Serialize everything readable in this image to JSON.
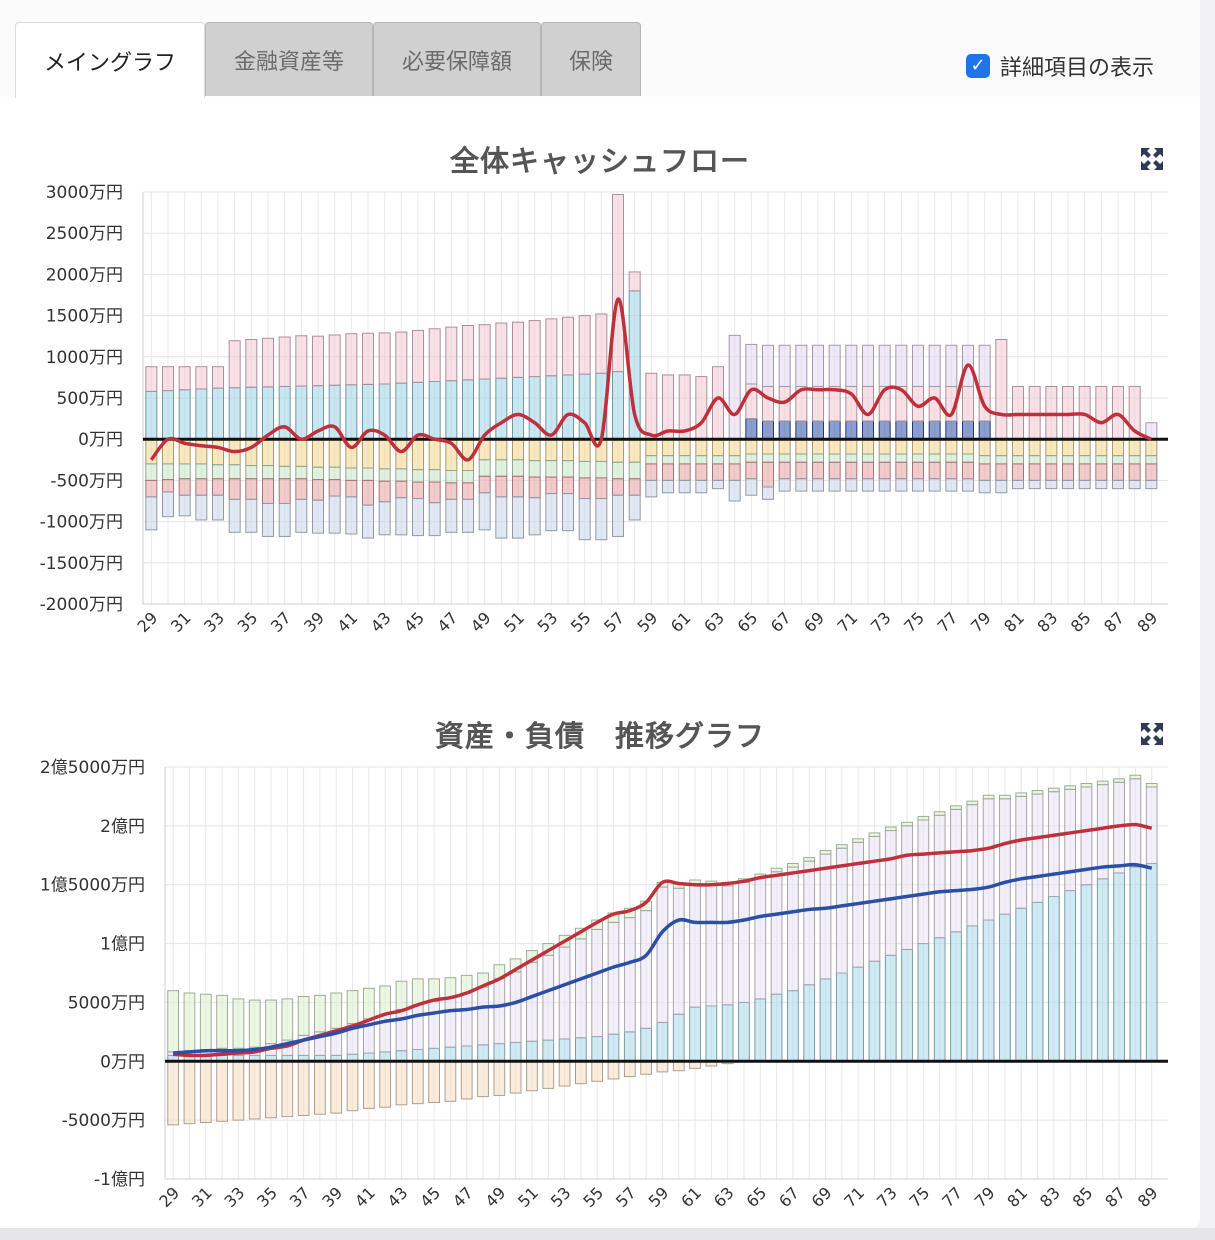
{
  "tabs": [
    {
      "label": "メイングラフ",
      "active": true
    },
    {
      "label": "金融資産等",
      "active": false
    },
    {
      "label": "必要保障額",
      "active": false
    },
    {
      "label": "保険",
      "active": false
    }
  ],
  "detail_toggle": {
    "label": "詳細項目の表示",
    "checked": true
  },
  "icons": {
    "expand": "expand-arrows-icon",
    "checkbox": "check-icon"
  },
  "colors": {
    "accent": "#1f74e8",
    "line_red": "#c0303c",
    "line_blue": "#2b4ea6"
  },
  "chart_data": [
    {
      "type": "bar",
      "title": "全体キャッシュフロー",
      "ylim": [
        -2000,
        3000
      ],
      "yticks": [
        "3000万円",
        "2500万円",
        "2000万円",
        "1500万円",
        "1000万円",
        "500万円",
        "0万円",
        "-500万円",
        "-1000万円",
        "-1500万円",
        "-2000万円"
      ],
      "xticks": [
        "29",
        "31",
        "33",
        "35",
        "37",
        "39",
        "41",
        "43",
        "45",
        "47",
        "49",
        "51",
        "53",
        "55",
        "57",
        "59",
        "61",
        "63",
        "65",
        "67",
        "69",
        "71",
        "73",
        "75",
        "77",
        "79",
        "81",
        "83",
        "85",
        "87",
        "89"
      ],
      "x_start": 29,
      "series": [
        {
          "role": "income-salary",
          "color": "#9bd3e6",
          "values": [
            580,
            590,
            600,
            610,
            620,
            625,
            630,
            635,
            640,
            645,
            650,
            655,
            660,
            665,
            670,
            680,
            690,
            700,
            710,
            720,
            730,
            740,
            750,
            760,
            770,
            780,
            790,
            800,
            820,
            1800,
            0,
            0,
            0,
            0,
            0,
            0,
            0,
            0,
            0,
            0,
            0,
            0,
            0,
            0,
            0,
            0,
            0,
            0,
            0,
            0,
            0,
            0,
            0,
            0,
            0,
            0,
            0,
            0,
            0,
            0,
            0
          ]
        },
        {
          "role": "income-pension",
          "color": "#2b4ea6",
          "values": [
            0,
            0,
            0,
            0,
            0,
            0,
            0,
            0,
            0,
            0,
            0,
            0,
            0,
            0,
            0,
            0,
            0,
            0,
            0,
            0,
            0,
            0,
            0,
            0,
            0,
            0,
            0,
            0,
            0,
            0,
            0,
            0,
            0,
            0,
            0,
            0,
            250,
            220,
            220,
            220,
            220,
            220,
            220,
            220,
            220,
            220,
            220,
            220,
            220,
            220,
            220,
            0,
            0,
            0,
            0,
            0,
            0,
            0,
            0,
            0,
            0
          ]
        },
        {
          "role": "income-other",
          "color": "#f3c6d4",
          "values": [
            300,
            290,
            280,
            270,
            260,
            570,
            580,
            590,
            600,
            610,
            600,
            610,
            620,
            620,
            620,
            620,
            630,
            640,
            650,
            660,
            660,
            670,
            670,
            680,
            690,
            700,
            710,
            720,
            2150,
            230,
            800,
            780,
            780,
            760,
            880,
            0,
            420,
            420,
            420,
            420,
            420,
            420,
            420,
            420,
            420,
            420,
            420,
            420,
            420,
            420,
            420,
            1210,
            640,
            640,
            640,
            640,
            640,
            640,
            640,
            640,
            0
          ]
        },
        {
          "role": "income-pension-2",
          "color": "#e1d5f0",
          "values": [
            0,
            0,
            0,
            0,
            0,
            0,
            0,
            0,
            0,
            0,
            0,
            0,
            0,
            0,
            0,
            0,
            0,
            0,
            0,
            0,
            0,
            0,
            0,
            0,
            0,
            0,
            0,
            0,
            0,
            0,
            0,
            0,
            0,
            0,
            0,
            1260,
            480,
            500,
            500,
            500,
            500,
            500,
            500,
            500,
            500,
            500,
            500,
            500,
            500,
            500,
            500,
            0,
            0,
            0,
            0,
            0,
            0,
            0,
            0,
            0,
            200
          ]
        },
        {
          "role": "expense-living",
          "color": "#f3d68c",
          "values": [
            -300,
            -300,
            -300,
            -300,
            -310,
            -310,
            -320,
            -320,
            -330,
            -330,
            -340,
            -340,
            -350,
            -350,
            -360,
            -360,
            -370,
            -370,
            -380,
            -380,
            -250,
            -250,
            -250,
            -260,
            -260,
            -260,
            -270,
            -270,
            -280,
            -280,
            -200,
            -200,
            -200,
            -200,
            -200,
            -200,
            -180,
            -180,
            -180,
            -180,
            -180,
            -180,
            -180,
            -180,
            -180,
            -180,
            -180,
            -180,
            -180,
            -180,
            -200,
            -200,
            -200,
            -200,
            -200,
            -200,
            -200,
            -200,
            -200,
            -200,
            -200
          ]
        },
        {
          "role": "expense-insurance",
          "color": "#c9e6c9",
          "values": [
            -200,
            -190,
            -180,
            -180,
            -170,
            -170,
            -160,
            -160,
            -150,
            -150,
            -150,
            -150,
            -150,
            -150,
            -150,
            -150,
            -150,
            -150,
            -150,
            -150,
            -200,
            -200,
            -200,
            -200,
            -200,
            -200,
            -200,
            -200,
            -200,
            -200,
            -100,
            -100,
            -100,
            -100,
            -100,
            -100,
            -100,
            -100,
            -100,
            -100,
            -100,
            -100,
            -100,
            -100,
            -100,
            -100,
            -100,
            -100,
            -100,
            -100,
            -100,
            -100,
            -100,
            -100,
            -100,
            -100,
            -100,
            -100,
            -100,
            -100,
            -100
          ]
        },
        {
          "role": "expense-tax",
          "color": "#e8a3a3",
          "values": [
            -200,
            -150,
            -200,
            -200,
            -200,
            -250,
            -250,
            -300,
            -300,
            -250,
            -250,
            -200,
            -200,
            -300,
            -250,
            -200,
            -200,
            -250,
            -200,
            -200,
            -200,
            -250,
            -250,
            -250,
            -200,
            -200,
            -250,
            -250,
            -200,
            -200,
            -200,
            -200,
            -200,
            -200,
            -200,
            -200,
            -200,
            -300,
            -200,
            -200,
            -200,
            -200,
            -200,
            -200,
            -200,
            -200,
            -200,
            -200,
            -200,
            -200,
            -200,
            -200,
            -200,
            -200,
            -200,
            -200,
            -200,
            -200,
            -200,
            -200,
            -200
          ]
        },
        {
          "role": "expense-other",
          "color": "#c8d6ea",
          "values": [
            -400,
            -300,
            -250,
            -300,
            -300,
            -400,
            -400,
            -400,
            -400,
            -400,
            -400,
            -450,
            -450,
            -400,
            -400,
            -450,
            -450,
            -400,
            -400,
            -400,
            -450,
            -500,
            -500,
            -450,
            -450,
            -450,
            -500,
            -500,
            -500,
            -300,
            -200,
            -150,
            -150,
            -150,
            -100,
            -250,
            -200,
            -150,
            -150,
            -150,
            -150,
            -150,
            -150,
            -150,
            -150,
            -150,
            -150,
            -150,
            -150,
            -150,
            -150,
            -150,
            -100,
            -100,
            -100,
            -100,
            -100,
            -100,
            -100,
            -100,
            -100
          ]
        }
      ],
      "line": {
        "role": "cashflow-balance",
        "color": "#c0303c",
        "values": [
          -250,
          0,
          -50,
          -80,
          -100,
          -150,
          -100,
          50,
          150,
          0,
          100,
          150,
          -100,
          100,
          50,
          -150,
          50,
          0,
          -50,
          -250,
          50,
          200,
          300,
          200,
          50,
          300,
          200,
          0,
          1700,
          300,
          50,
          100,
          100,
          200,
          500,
          300,
          600,
          500,
          450,
          600,
          600,
          600,
          550,
          300,
          600,
          600,
          400,
          500,
          300,
          900,
          400,
          300,
          300,
          300,
          300,
          300,
          300,
          200,
          300,
          100,
          0
        ]
      }
    },
    {
      "type": "bar",
      "title": "資産・負債　推移グラフ",
      "ylim": [
        -10000,
        25000
      ],
      "yticks": [
        "2億5000万円",
        "2億円",
        "1億5000万円",
        "1億円",
        "5000万円",
        "0万円",
        "-5000万円",
        "-1億円"
      ],
      "xticks": [
        "29",
        "31",
        "33",
        "35",
        "37",
        "39",
        "41",
        "43",
        "45",
        "47",
        "49",
        "51",
        "53",
        "55",
        "57",
        "59",
        "61",
        "63",
        "65",
        "67",
        "69",
        "71",
        "73",
        "75",
        "77",
        "79",
        "81",
        "83",
        "85",
        "87",
        "89"
      ],
      "x_start": 29,
      "series": [
        {
          "role": "asset-cash",
          "color": "#a7d8ea",
          "values": [
            500,
            500,
            500,
            500,
            500,
            500,
            500,
            500,
            500,
            500,
            500,
            600,
            700,
            800,
            900,
            1000,
            1100,
            1200,
            1300,
            1400,
            1500,
            1600,
            1700,
            1800,
            1900,
            2000,
            2100,
            2300,
            2500,
            2800,
            3300,
            4000,
            4600,
            4700,
            4800,
            5000,
            5300,
            5700,
            6000,
            6500,
            7000,
            7500,
            8000,
            8500,
            9000,
            9500,
            10000,
            10500,
            11000,
            11500,
            12000,
            12500,
            13000,
            13500,
            14000,
            14500,
            15000,
            15500,
            16000,
            16500,
            16800
          ]
        },
        {
          "role": "asset-investment",
          "color": "#e9e2f3",
          "values": [
            300,
            400,
            500,
            600,
            600,
            700,
            1000,
            1300,
            1700,
            2000,
            2300,
            2600,
            2900,
            3200,
            3500,
            3800,
            4000,
            4200,
            4500,
            4900,
            5500,
            6000,
            6700,
            7200,
            7800,
            8400,
            9100,
            9500,
            9700,
            10000,
            11500,
            10700,
            10500,
            10300,
            10100,
            10200,
            10300,
            10400,
            10500,
            10500,
            10600,
            10600,
            10600,
            10600,
            10600,
            10500,
            10500,
            10400,
            10400,
            10300,
            10300,
            9800,
            9500,
            9200,
            8900,
            8600,
            8300,
            8000,
            7700,
            7500,
            6500
          ]
        },
        {
          "role": "asset-other",
          "color": "#dcefd0",
          "values": [
            5200,
            4900,
            4700,
            4500,
            4200,
            4000,
            3700,
            3500,
            3300,
            3100,
            3000,
            2800,
            2600,
            2400,
            2400,
            2200,
            1900,
            1700,
            1500,
            1200,
            1200,
            1100,
            1000,
            1000,
            1000,
            900,
            800,
            800,
            800,
            800,
            400,
            400,
            300,
            300,
            300,
            300,
            300,
            300,
            300,
            300,
            300,
            300,
            300,
            300,
            300,
            300,
            300,
            300,
            300,
            300,
            300,
            300,
            300,
            300,
            300,
            300,
            300,
            300,
            300,
            300,
            300
          ]
        },
        {
          "role": "liability-loan",
          "color": "#f6dcbf",
          "values": [
            -5400,
            -5300,
            -5200,
            -5100,
            -5000,
            -4900,
            -4800,
            -4700,
            -4600,
            -4500,
            -4400,
            -4200,
            -4000,
            -3900,
            -3700,
            -3600,
            -3500,
            -3400,
            -3200,
            -3000,
            -2900,
            -2700,
            -2500,
            -2300,
            -2100,
            -1900,
            -1700,
            -1500,
            -1300,
            -1100,
            -900,
            -800,
            -600,
            -400,
            -200,
            0,
            0,
            0,
            0,
            0,
            0,
            0,
            0,
            0,
            0,
            0,
            0,
            0,
            0,
            0,
            0,
            0,
            0,
            0,
            0,
            0,
            0,
            0,
            0,
            0,
            0
          ]
        }
      ],
      "lines": [
        {
          "role": "total-assets",
          "color": "#c0303c",
          "values": [
            600,
            500,
            500,
            600,
            700,
            800,
            1100,
            1300,
            1800,
            2200,
            2600,
            3000,
            3500,
            4000,
            4300,
            4800,
            5200,
            5400,
            5800,
            6400,
            7000,
            7800,
            8600,
            9400,
            10200,
            11000,
            11800,
            12500,
            12800,
            13500,
            15200,
            15100,
            15000,
            15000,
            15100,
            15300,
            15600,
            15800,
            16000,
            16200,
            16400,
            16600,
            16800,
            17000,
            17200,
            17500,
            17600,
            17700,
            17800,
            17900,
            18100,
            18500,
            18800,
            19000,
            19200,
            19400,
            19600,
            19800,
            20000,
            20100,
            19800
          ]
        },
        {
          "role": "net-assets",
          "color": "#2b4ea6",
          "values": [
            700,
            800,
            900,
            900,
            900,
            1000,
            1200,
            1500,
            1800,
            2100,
            2400,
            2800,
            3100,
            3400,
            3600,
            3900,
            4100,
            4300,
            4400,
            4600,
            4700,
            5000,
            5500,
            6000,
            6500,
            7000,
            7500,
            8000,
            8400,
            9000,
            11000,
            12000,
            11800,
            11800,
            11800,
            12000,
            12300,
            12500,
            12700,
            12900,
            13000,
            13200,
            13400,
            13600,
            13800,
            14000,
            14200,
            14400,
            14500,
            14600,
            14800,
            15200,
            15500,
            15700,
            15900,
            16100,
            16300,
            16500,
            16600,
            16700,
            16400
          ]
        }
      ]
    }
  ]
}
